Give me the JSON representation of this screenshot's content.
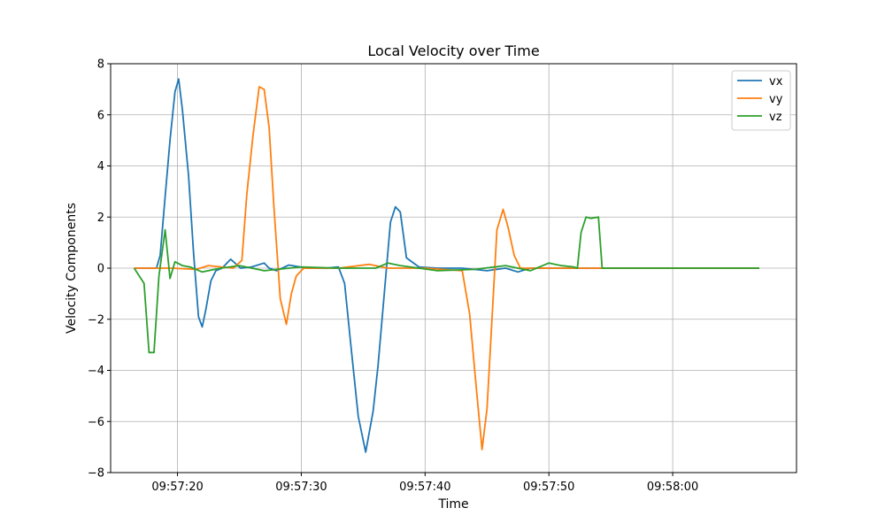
{
  "chart_data": {
    "type": "line",
    "title": "Local Velocity over Time",
    "xlabel": "Time",
    "ylabel": "Velocity Components",
    "xlim": [
      "09:57:14.6",
      "09:58:10.0"
    ],
    "ylim": [
      -8,
      8
    ],
    "yticks": [
      -8,
      -6,
      -4,
      -2,
      0,
      2,
      4,
      6,
      8
    ],
    "yticklabels": [
      "−8",
      "−6",
      "−4",
      "−2",
      "0",
      "2",
      "4",
      "6",
      "8"
    ],
    "xticks": [
      "09:57:20",
      "09:57:30",
      "09:57:40",
      "09:57:50",
      "09:58:00"
    ],
    "grid": true,
    "legend_position": "top-right",
    "series": [
      {
        "name": "vx",
        "color": "#1f77b4",
        "x": [
          "09:57:16.5",
          "09:57:18.3",
          "09:57:18.6",
          "09:57:19.0",
          "09:57:19.4",
          "09:57:19.8",
          "09:57:20.1",
          "09:57:20.4",
          "09:57:20.9",
          "09:57:21.3",
          "09:57:21.7",
          "09:57:22.0",
          "09:57:22.3",
          "09:57:22.7",
          "09:57:23.1",
          "09:57:23.6",
          "09:57:24.3",
          "09:57:25.1",
          "09:57:26.0",
          "09:57:27.0",
          "09:57:27.4",
          "09:57:28.0",
          "09:57:29.0",
          "09:57:30.5",
          "09:57:32.0",
          "09:57:33.0",
          "09:57:33.5",
          "09:57:34.0",
          "09:57:34.6",
          "09:57:35.2",
          "09:57:35.8",
          "09:57:36.2",
          "09:57:36.7",
          "09:57:37.2",
          "09:57:37.6",
          "09:57:38.0",
          "09:57:38.5",
          "09:57:39.5",
          "09:57:41.0",
          "09:57:43.0",
          "09:57:45.0",
          "09:57:46.5",
          "09:57:47.5",
          "09:57:48.5",
          "09:57:54.3",
          "09:58:07.0"
        ],
        "values": [
          0.0,
          0.0,
          0.5,
          2.8,
          5.0,
          6.9,
          7.4,
          6.2,
          3.6,
          0.6,
          -1.9,
          -2.3,
          -1.6,
          -0.5,
          -0.1,
          0.0,
          0.35,
          0.0,
          0.05,
          0.2,
          0.0,
          -0.1,
          0.12,
          0.0,
          0.0,
          0.05,
          -0.6,
          -3.0,
          -5.8,
          -7.2,
          -5.6,
          -3.8,
          -1.0,
          1.8,
          2.4,
          2.2,
          0.4,
          0.05,
          0.0,
          0.0,
          -0.1,
          0.0,
          -0.15,
          0.0,
          0.0,
          0.0
        ]
      },
      {
        "name": "vy",
        "color": "#ff7f0e",
        "x": [
          "09:57:16.5",
          "09:57:19.5",
          "09:57:21.5",
          "09:57:22.5",
          "09:57:24.5",
          "09:57:25.2",
          "09:57:25.6",
          "09:57:26.1",
          "09:57:26.6",
          "09:57:27.0",
          "09:57:27.4",
          "09:57:27.8",
          "09:57:28.3",
          "09:57:28.8",
          "09:57:29.2",
          "09:57:29.6",
          "09:57:30.2",
          "09:57:31.0",
          "09:57:33.0",
          "09:57:35.5",
          "09:57:37.0",
          "09:57:40.0",
          "09:57:43.0",
          "09:57:43.6",
          "09:57:44.1",
          "09:57:44.6",
          "09:57:45.0",
          "09:57:45.4",
          "09:57:45.8",
          "09:57:46.3",
          "09:57:46.7",
          "09:57:47.2",
          "09:57:47.7",
          "09:57:48.5",
          "09:57:54.3",
          "09:58:07.0"
        ],
        "values": [
          0.0,
          0.0,
          -0.05,
          0.1,
          0.0,
          0.3,
          2.9,
          5.2,
          7.1,
          7.0,
          5.5,
          2.3,
          -1.2,
          -2.2,
          -1.0,
          -0.3,
          0.0,
          0.0,
          0.0,
          0.15,
          0.0,
          0.0,
          -0.1,
          -1.8,
          -4.5,
          -7.1,
          -5.5,
          -2.0,
          1.5,
          2.3,
          1.6,
          0.5,
          0.0,
          0.0,
          0.0,
          0.0
        ]
      },
      {
        "name": "vz",
        "color": "#2ca02c",
        "x": [
          "09:57:16.5",
          "09:57:17.3",
          "09:57:17.7",
          "09:57:18.1",
          "09:57:18.5",
          "09:57:19.0",
          "09:57:19.4",
          "09:57:19.8",
          "09:57:20.4",
          "09:57:21.0",
          "09:57:22.0",
          "09:57:23.5",
          "09:57:25.0",
          "09:57:27.0",
          "09:57:30.0",
          "09:57:33.0",
          "09:57:36.0",
          "09:57:37.0",
          "09:57:38.0",
          "09:57:41.0",
          "09:57:44.0",
          "09:57:46.5",
          "09:57:48.5",
          "09:57:50.0",
          "09:57:51.0",
          "09:57:52.0",
          "09:57:52.3",
          "09:57:52.6",
          "09:57:53.0",
          "09:57:53.4",
          "09:57:54.0",
          "09:57:54.3",
          "09:58:07.0"
        ],
        "values": [
          0.0,
          -0.6,
          -3.3,
          -3.3,
          -0.3,
          1.5,
          -0.4,
          0.25,
          0.1,
          0.05,
          -0.15,
          0.0,
          0.1,
          -0.1,
          0.05,
          0.0,
          0.0,
          0.2,
          0.1,
          -0.1,
          -0.05,
          0.1,
          -0.1,
          0.2,
          0.1,
          0.05,
          0.0,
          1.4,
          2.0,
          1.95,
          2.0,
          0.0,
          0.0
        ]
      }
    ]
  }
}
